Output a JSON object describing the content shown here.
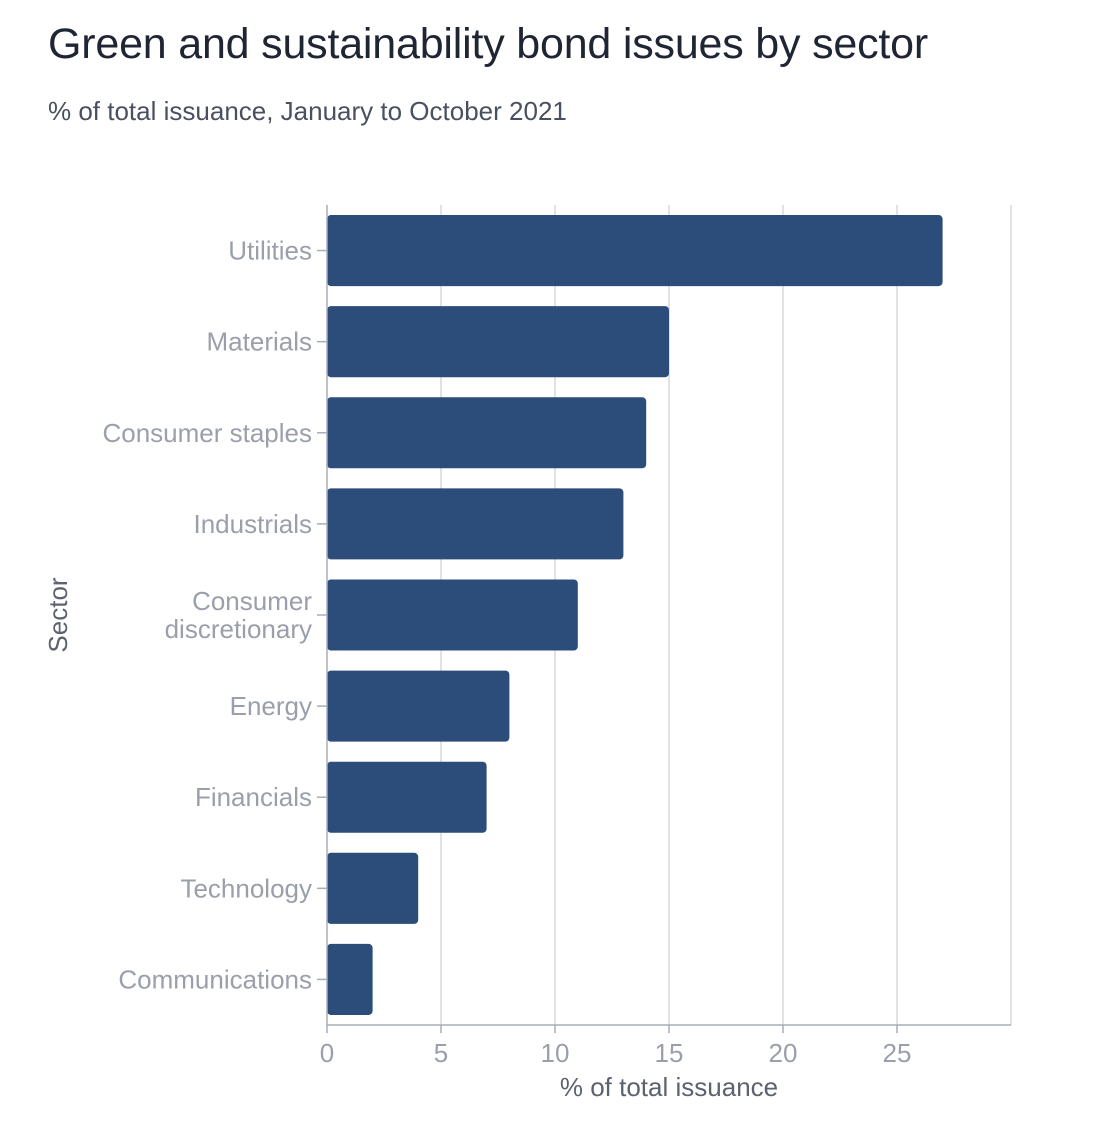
{
  "chart_data": {
    "type": "bar",
    "orientation": "horizontal",
    "title": "Green and sustainability bond issues by sector",
    "subtitle": "% of total issuance, January to October 2021",
    "xlabel": "% of total issuance",
    "ylabel": "Sector",
    "categories": [
      [
        "Utilities"
      ],
      [
        "Materials"
      ],
      [
        "Consumer staples"
      ],
      [
        "Industrials"
      ],
      [
        "Consumer",
        "discretionary"
      ],
      [
        "Energy"
      ],
      [
        "Financials"
      ],
      [
        "Technology"
      ],
      [
        "Communications"
      ]
    ],
    "values": [
      27,
      15,
      14,
      13,
      11,
      8,
      7,
      4,
      2
    ],
    "xlim": [
      0,
      30
    ],
    "xticks": [
      0,
      5,
      10,
      15,
      20,
      25
    ],
    "grid": true,
    "bar_color": "#2c4c7a"
  }
}
